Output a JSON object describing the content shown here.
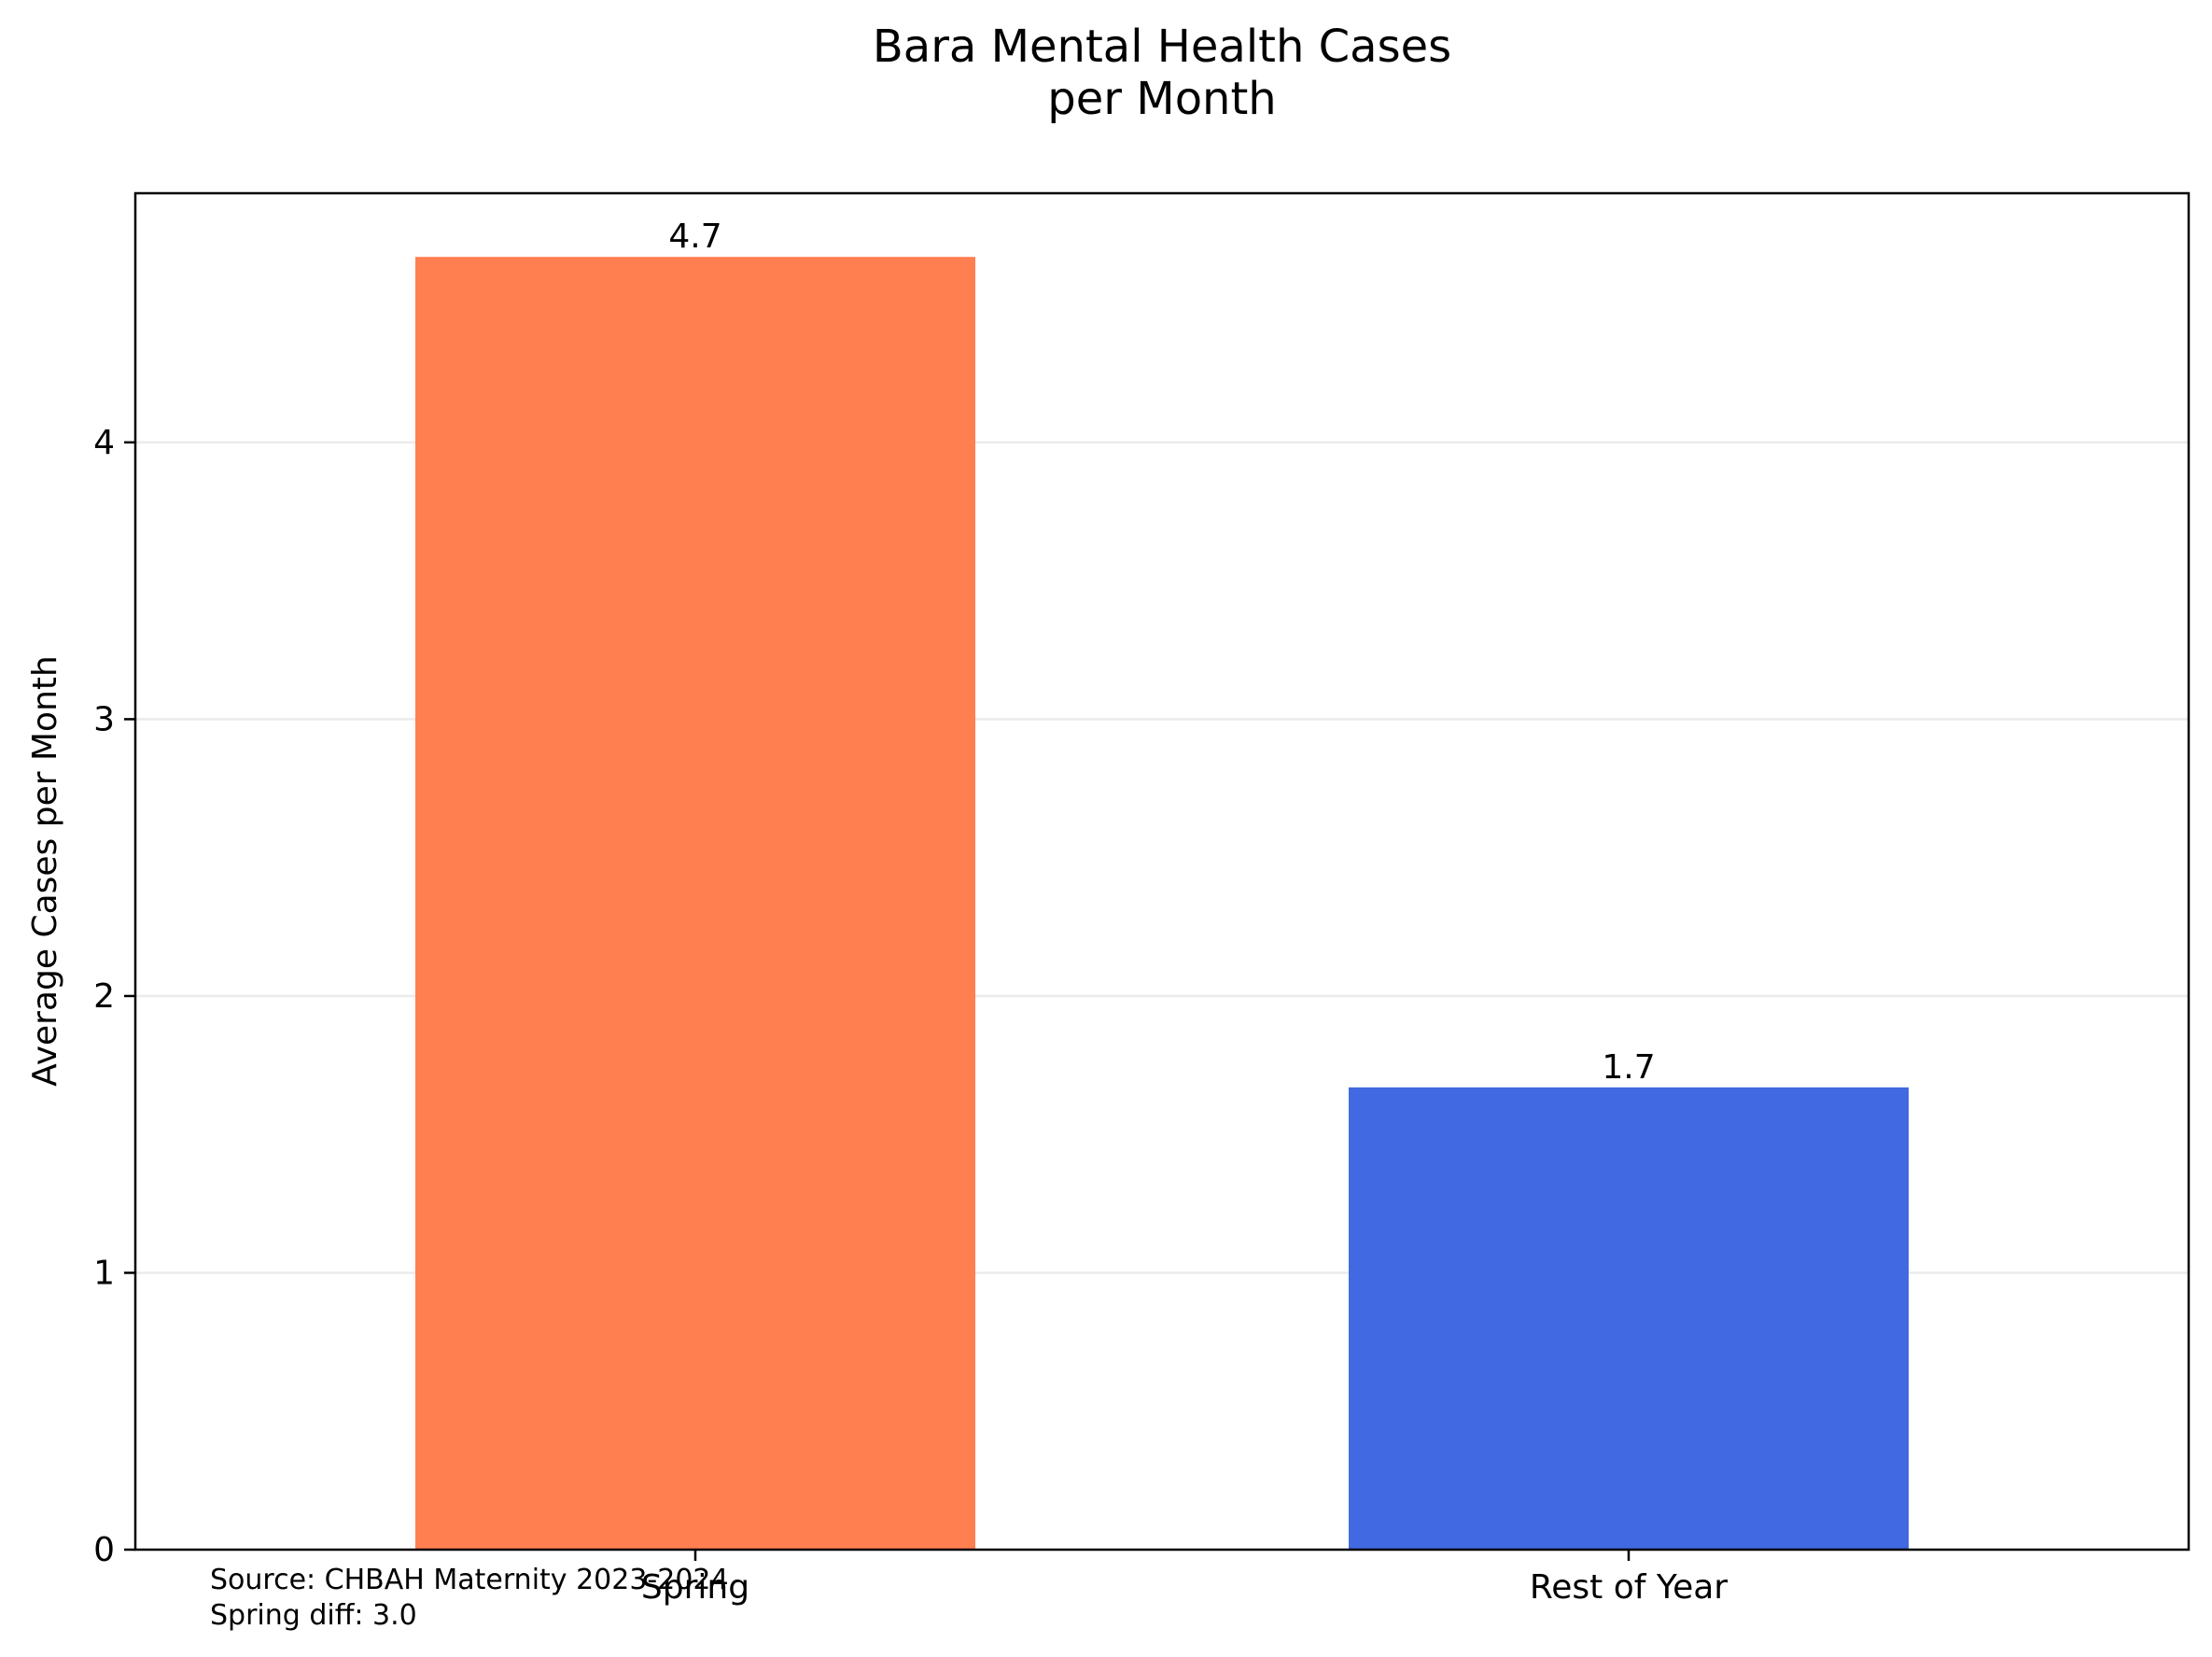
{
  "chart_data": {
    "type": "bar",
    "title_lines": [
      "Bara Mental Health Cases",
      "per Month"
    ],
    "categories": [
      "Spring",
      "Rest of Year"
    ],
    "values": [
      4.67,
      1.67
    ],
    "value_labels": [
      "4.7",
      "1.7"
    ],
    "bar_colors": [
      "#FF7F50",
      "#4169E1"
    ],
    "ylabel": "Average Cases per Month",
    "xlabel": "",
    "ylim": [
      0,
      4.9
    ],
    "yticks": [
      0,
      1,
      2,
      3,
      4
    ],
    "grid": "y",
    "notes": [
      "Source: CHBAH Maternity 2023-2024",
      "Spring diff: 3.0"
    ]
  }
}
